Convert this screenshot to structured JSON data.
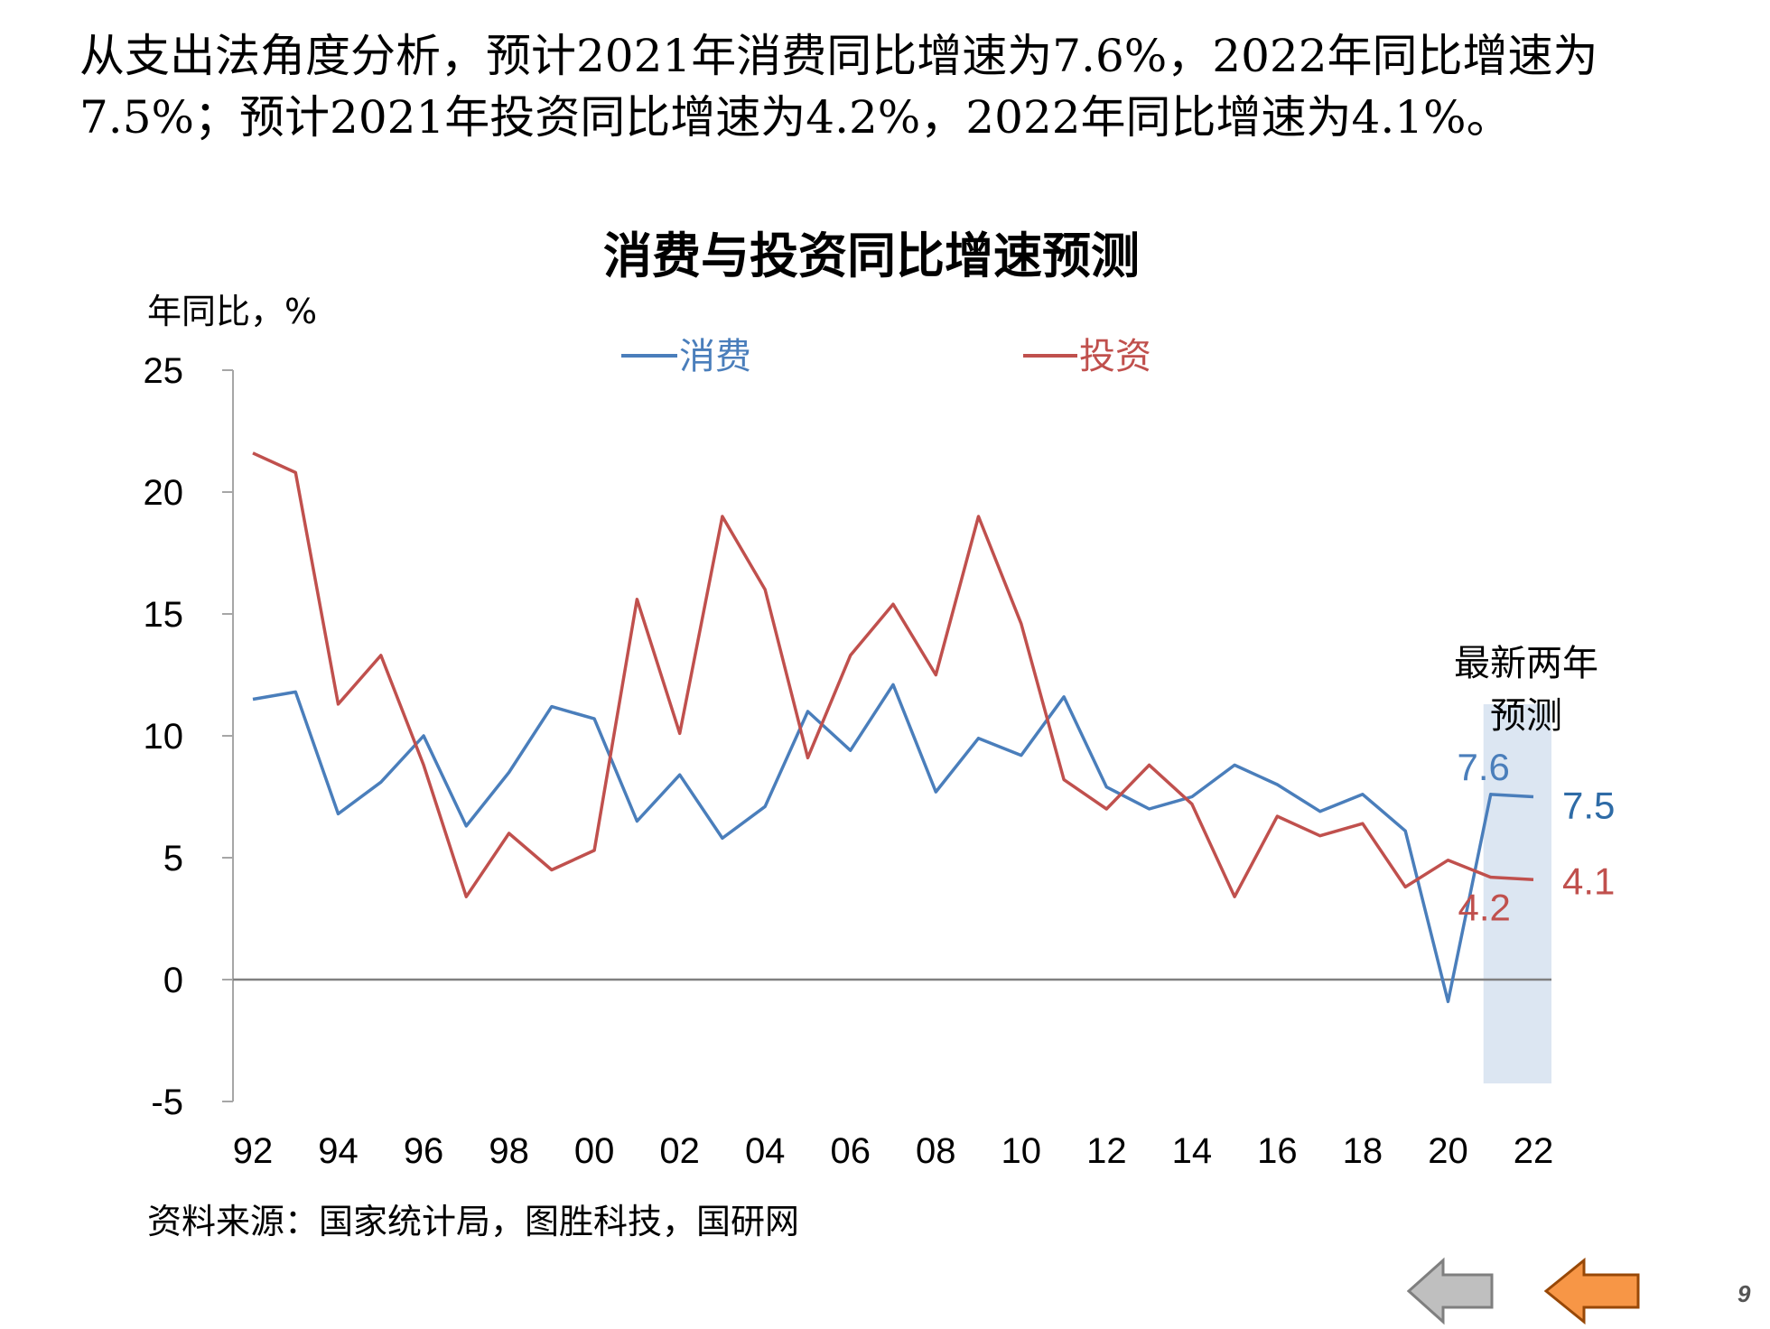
{
  "headline": {
    "line1": "从支出法角度分析，预计2021年消费同比增速为7.6%，2022年同比增速为",
    "line2": "7.5%；预计2021年投资同比增速为4.2%，2022年同比增速为4.1%。"
  },
  "chart_data": {
    "type": "line",
    "title": "消费与投资同比增速预测",
    "ylabel": "年同比，%",
    "xlabel": "",
    "ylim": [
      -5,
      25
    ],
    "yticks": [
      "25",
      "20",
      "15",
      "10",
      "5",
      "0",
      "-5"
    ],
    "x": [
      1992,
      1993,
      1994,
      1995,
      1996,
      1997,
      1998,
      1999,
      2000,
      2001,
      2002,
      2003,
      2004,
      2005,
      2006,
      2007,
      2008,
      2009,
      2010,
      2011,
      2012,
      2013,
      2014,
      2015,
      2016,
      2017,
      2018,
      2019,
      2020,
      2021,
      2022
    ],
    "xtick_labels": [
      "92",
      "94",
      "96",
      "98",
      "00",
      "02",
      "04",
      "06",
      "08",
      "10",
      "12",
      "14",
      "16",
      "18",
      "20",
      "22"
    ],
    "xtick_years": [
      1992,
      1994,
      1996,
      1998,
      2000,
      2002,
      2004,
      2006,
      2008,
      2010,
      2012,
      2014,
      2016,
      2018,
      2020,
      2022
    ],
    "legend_position": "top",
    "grid": false,
    "series": [
      {
        "name": "消费",
        "color": "#4a7ebb",
        "values": [
          11.5,
          11.8,
          6.8,
          8.1,
          10.0,
          6.3,
          8.5,
          11.2,
          10.7,
          6.5,
          8.4,
          5.8,
          7.1,
          11.0,
          9.4,
          12.1,
          7.7,
          9.9,
          9.2,
          11.6,
          7.9,
          7.0,
          7.5,
          8.8,
          8.0,
          6.9,
          7.6,
          6.1,
          -0.9,
          7.6,
          7.5
        ]
      },
      {
        "name": "投资",
        "color": "#c0504d",
        "values": [
          21.6,
          20.8,
          11.3,
          13.3,
          8.8,
          3.4,
          6.0,
          4.5,
          5.3,
          15.6,
          10.1,
          19.0,
          16.0,
          9.1,
          13.3,
          15.4,
          12.5,
          19.0,
          14.6,
          8.2,
          7.0,
          8.8,
          7.2,
          3.4,
          6.7,
          5.9,
          6.4,
          3.8,
          4.9,
          4.2,
          4.1
        ]
      }
    ],
    "data_labels": [
      {
        "text": "7.6",
        "series": 0,
        "year": 2021,
        "color": "#4a7ebb"
      },
      {
        "text": "7.5",
        "series": 0,
        "year": 2022,
        "color": "#2e6ba6"
      },
      {
        "text": "4.2",
        "series": 1,
        "year": 2021,
        "color": "#c0504d"
      },
      {
        "text": "4.1",
        "series": 1,
        "year": 2022,
        "color": "#c0504d"
      }
    ],
    "forecast_band": {
      "from_year": 2021,
      "to_year": 2022,
      "color": "#dce6f2",
      "label_line1": "最新两年",
      "label_line2": "预测"
    }
  },
  "source": "资料来源：国家统计局，图胜科技，国研网",
  "nav": {
    "prev_icon": "left-arrow-icon",
    "prev_color": "#bfbfbf",
    "next_icon": "left-arrow-icon",
    "next_color": "#f79646"
  },
  "page_number": "9"
}
